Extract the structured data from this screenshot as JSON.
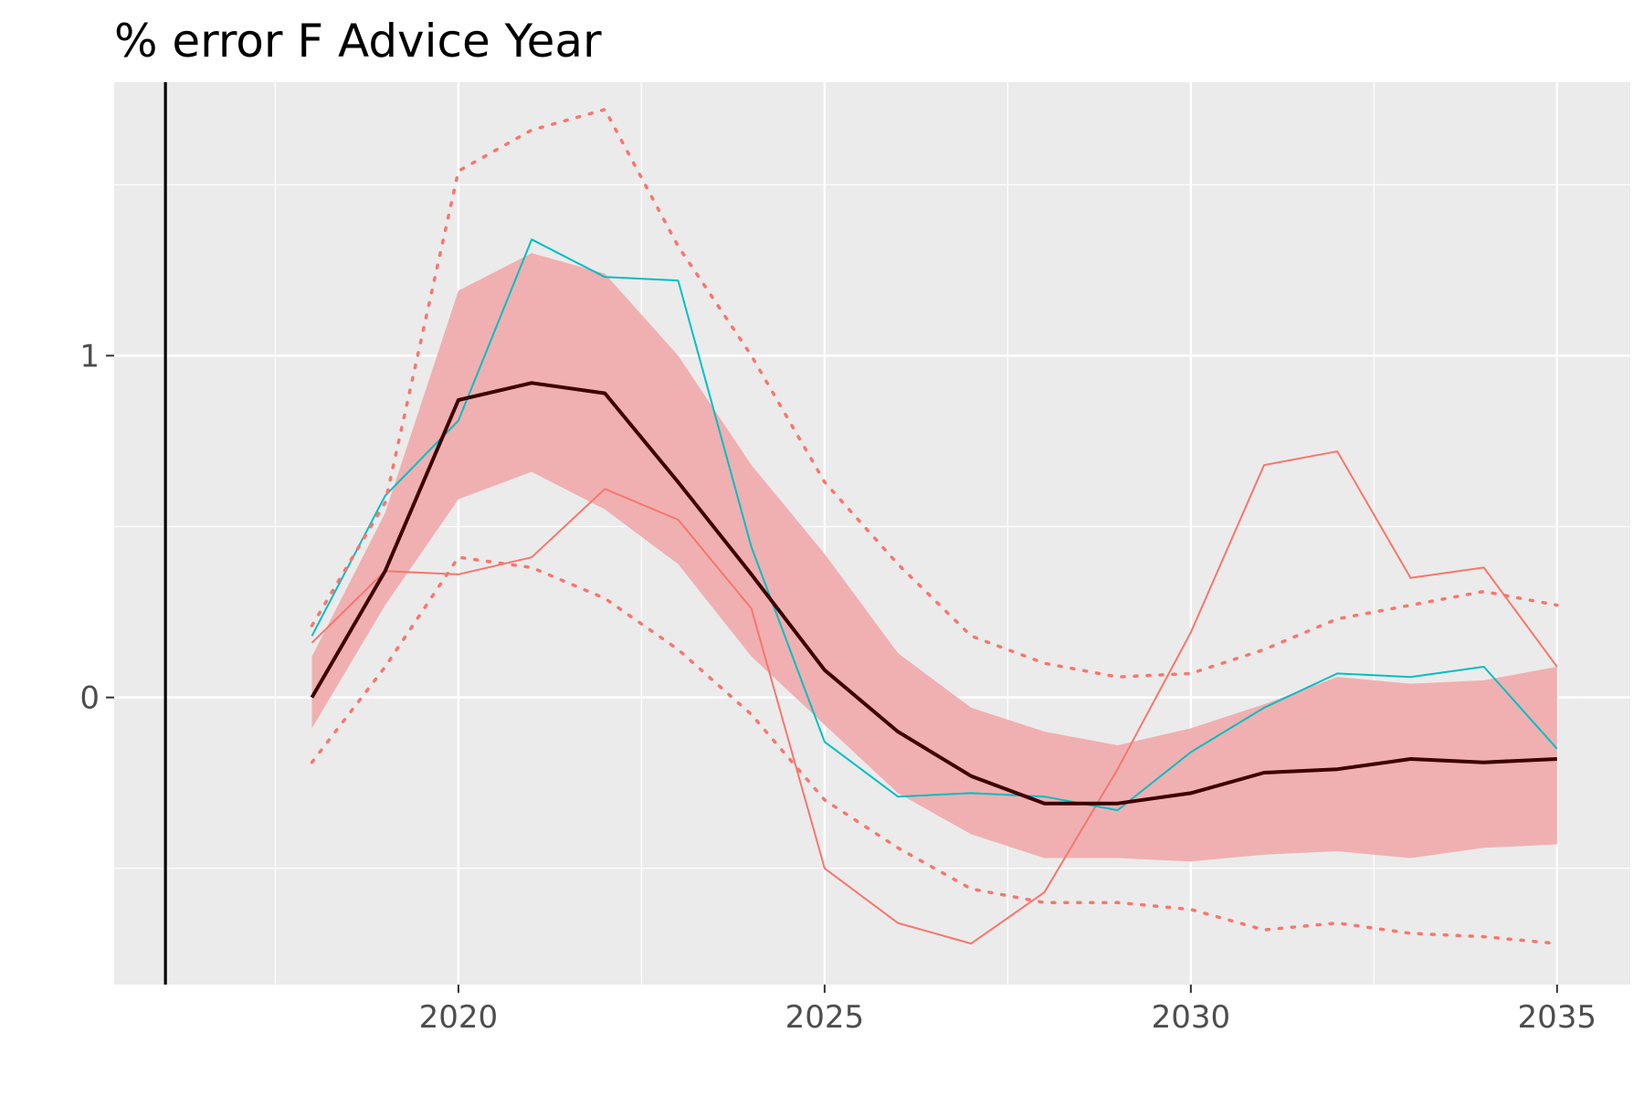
{
  "chart_data": {
    "type": "line",
    "title": "% error F Advice Year",
    "xlabel": "",
    "ylabel": "",
    "x": [
      2018,
      2019,
      2020,
      2021,
      2022,
      2023,
      2024,
      2025,
      2026,
      2027,
      2028,
      2029,
      2030,
      2031,
      2032,
      2033,
      2034,
      2035
    ],
    "xlim": [
      2015.3,
      2036.0
    ],
    "ylim": [
      -0.84,
      1.8
    ],
    "x_ticks": [
      2020,
      2025,
      2030,
      2035
    ],
    "y_ticks": [
      0,
      1
    ],
    "x_tick_labels": [
      "2020",
      "2025",
      "2030",
      "2035"
    ],
    "y_tick_labels": [
      "0",
      "1"
    ],
    "grid": true,
    "vline_x": 2016,
    "band": {
      "lower": [
        -0.09,
        0.27,
        0.58,
        0.66,
        0.55,
        0.39,
        0.12,
        -0.08,
        -0.28,
        -0.4,
        -0.47,
        -0.47,
        -0.48,
        -0.46,
        -0.45,
        -0.47,
        -0.44,
        -0.43
      ],
      "upper": [
        0.12,
        0.54,
        1.19,
        1.3,
        1.24,
        1.0,
        0.68,
        0.42,
        0.13,
        -0.03,
        -0.1,
        -0.14,
        -0.09,
        -0.02,
        0.06,
        0.04,
        0.05,
        0.09
      ],
      "color": "#f0b0b1"
    },
    "series": [
      {
        "values": [
          0.0,
          0.37,
          0.87,
          0.92,
          0.89,
          0.63,
          0.36,
          0.08,
          -0.1,
          -0.23,
          -0.31,
          -0.31,
          -0.28,
          -0.22,
          -0.21,
          -0.18,
          -0.19,
          -0.18
        ],
        "color": "#3d0000",
        "style": "solid",
        "width": 4
      },
      {
        "values": [
          0.16,
          0.37,
          0.36,
          0.41,
          0.61,
          0.52,
          0.26,
          -0.5,
          -0.66,
          -0.72,
          -0.57,
          -0.21,
          0.19,
          0.68,
          0.72,
          0.35,
          0.38,
          0.09
        ],
        "color": "#f8766d",
        "style": "solid",
        "width": 2
      },
      {
        "values": [
          0.18,
          0.59,
          0.81,
          1.34,
          1.23,
          1.22,
          0.44,
          -0.13,
          -0.29,
          -0.28,
          -0.29,
          -0.33,
          -0.16,
          -0.03,
          0.07,
          0.06,
          0.09,
          -0.15
        ],
        "color": "#00bfc4",
        "style": "solid",
        "width": 2
      },
      {
        "values": [
          0.21,
          0.57,
          1.54,
          1.66,
          1.72,
          1.32,
          1.0,
          0.63,
          0.39,
          0.18,
          0.1,
          0.06,
          0.07,
          0.14,
          0.23,
          0.27,
          0.31,
          0.27
        ],
        "color": "#f8766d",
        "style": "dotted",
        "width": 3.5
      },
      {
        "values": [
          -0.19,
          0.09,
          0.41,
          0.38,
          0.29,
          0.14,
          -0.05,
          -0.3,
          -0.44,
          -0.56,
          -0.6,
          -0.6,
          -0.62,
          -0.68,
          -0.66,
          -0.69,
          -0.7,
          -0.72
        ],
        "color": "#f8766d",
        "style": "dotted",
        "width": 3.5
      }
    ]
  }
}
